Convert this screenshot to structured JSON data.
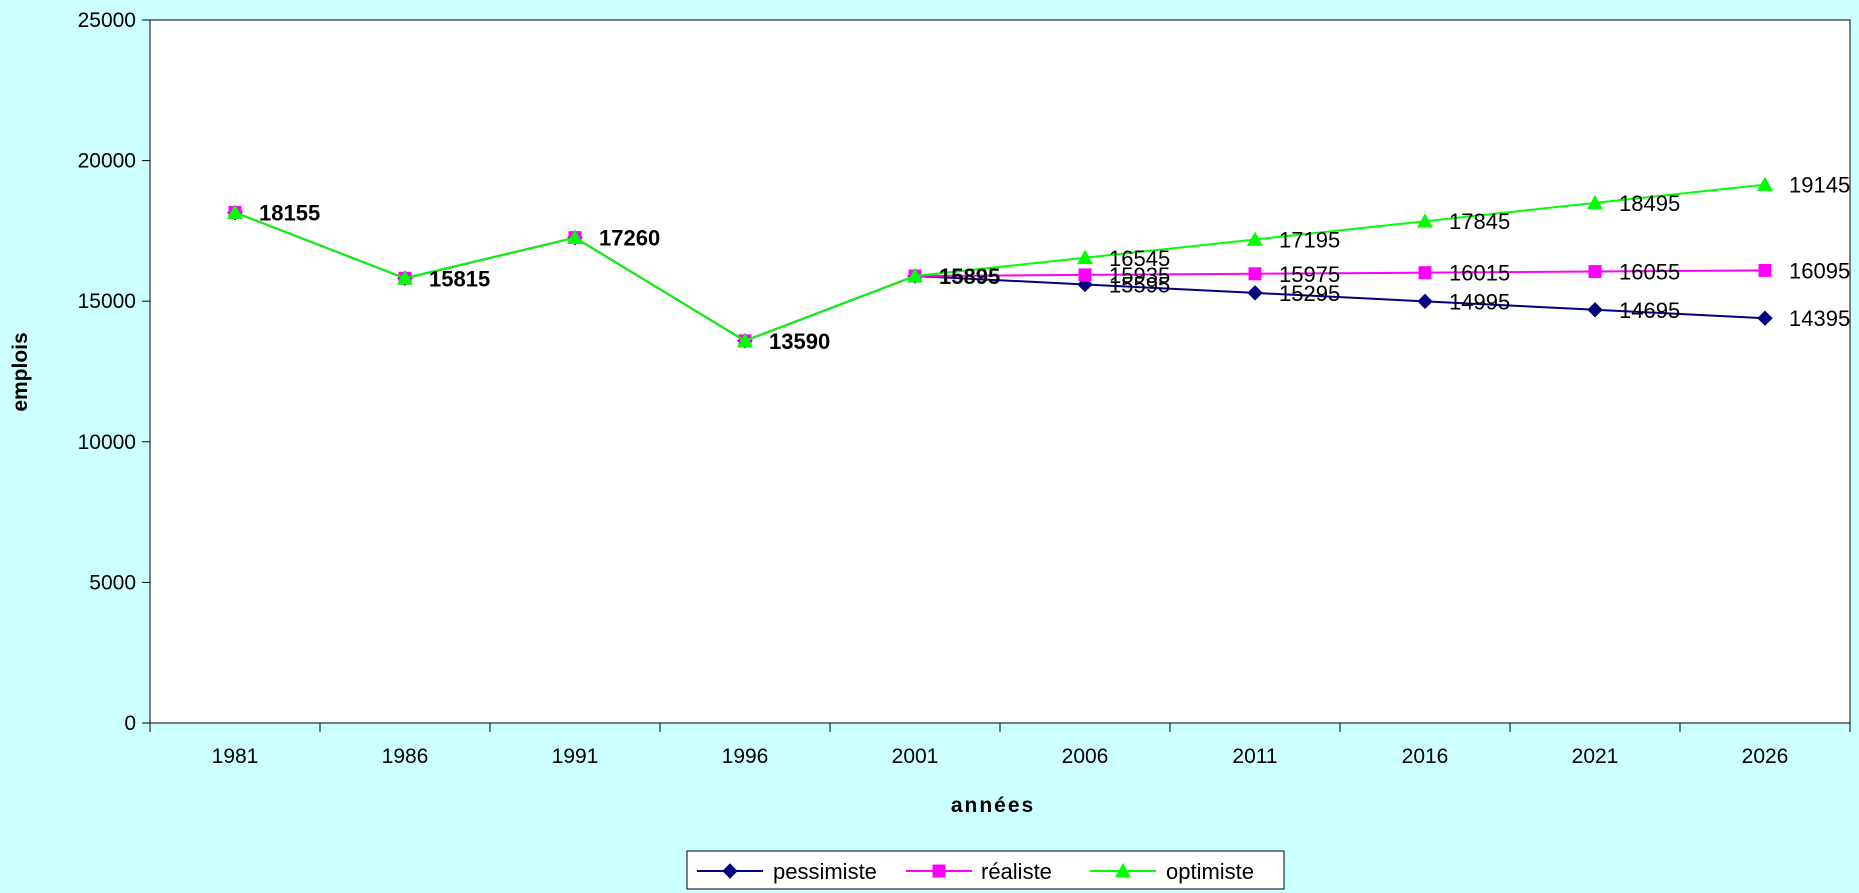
{
  "chart_data": {
    "type": "line",
    "xlabel": "années",
    "ylabel": "emplois",
    "categories": [
      "1981",
      "1986",
      "1991",
      "1996",
      "2001",
      "2006",
      "2011",
      "2016",
      "2021",
      "2026"
    ],
    "ylim": [
      0,
      25000
    ],
    "yticks": [
      0,
      5000,
      10000,
      15000,
      20000,
      25000
    ],
    "grid": false,
    "legend_position": "bottom",
    "historical": {
      "years": [
        "1981",
        "1986",
        "1991",
        "1996",
        "2001"
      ],
      "values": [
        18155,
        15815,
        17260,
        13590,
        15895
      ]
    },
    "series": [
      {
        "name": "pessimiste",
        "color": "#000080",
        "marker": "diamond",
        "values": [
          18155,
          15815,
          17260,
          13590,
          15895,
          15595,
          15295,
          14995,
          14695,
          14395
        ]
      },
      {
        "name": "réaliste",
        "color": "#FF00FF",
        "marker": "square",
        "values": [
          18155,
          15815,
          17260,
          13590,
          15895,
          15935,
          15975,
          16015,
          16055,
          16095
        ]
      },
      {
        "name": "optimiste",
        "color": "#00FF00",
        "marker": "triangle",
        "values": [
          18155,
          15815,
          17260,
          13590,
          15895,
          16545,
          17195,
          17845,
          18495,
          19145
        ]
      }
    ]
  }
}
